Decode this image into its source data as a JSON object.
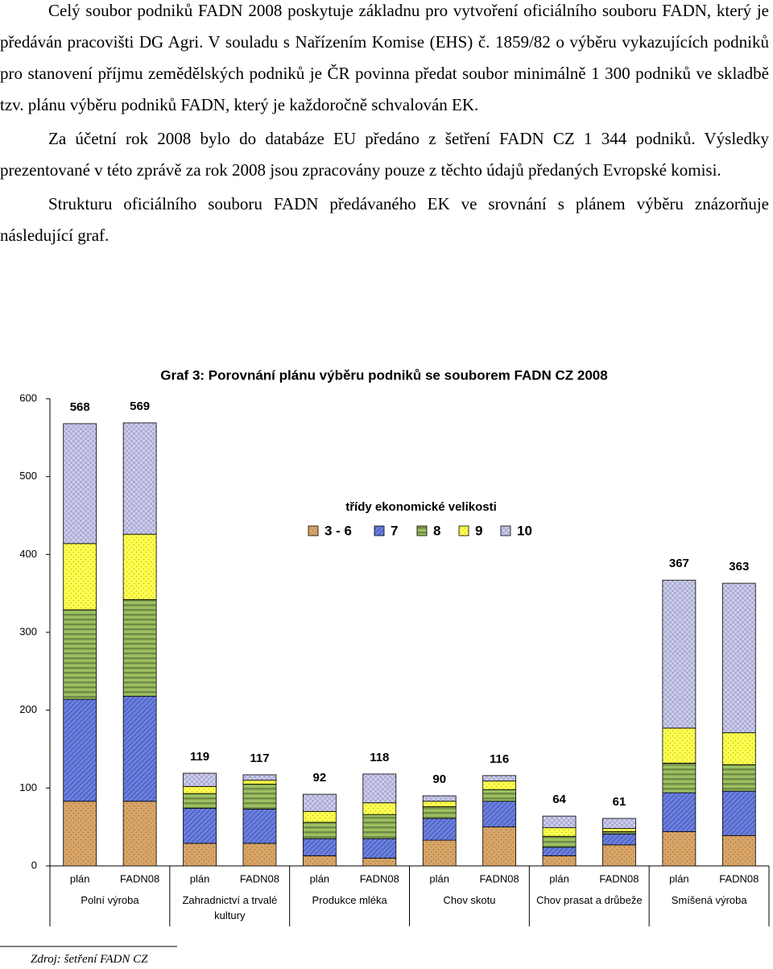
{
  "paragraphs": [
    "Celý soubor podniků FADN 2008 poskytuje základnu pro vytvoření oficiálního souboru FADN, který je předáván pracovišti DG Agri. V souladu s Nařízením Komise (EHS) č. 1859/82 o výběru vykazujících podniků pro stanovení příjmu zemědělských podniků je ČR povinna předat soubor minimálně 1 300 podniků ve skladbě tzv. plánu výběru podniků FADN, který je každoročně schvalován EK.",
    "Za účetní rok 2008 bylo do databáze EU předáno z šetření FADN CZ 1 344 podniků. Výsledky prezentované v této zprávě za rok 2008 jsou zpracovány pouze z těchto údajů předaných Evropské komisi.",
    "Strukturu oficiálního souboru FADN předávaného EK ve srovnání s plánem výběru znázorňuje následující graf."
  ],
  "chart_data": {
    "type": "stacked_bar",
    "title": "Graf 3: Porovnání plánu výběru podniků se souborem FADN CZ 2008",
    "legend_title": "třídy ekonomické velikosti",
    "categories": [
      "plán",
      "FADN08",
      "plán",
      "FADN08",
      "plán",
      "FADN08",
      "plán",
      "FADN08",
      "plán",
      "FADN08",
      "plán",
      "FADN08"
    ],
    "groups": [
      "Polní výroba",
      "Zahradnictví a trvalé kultury",
      "Produkce mléka",
      "Chov skotu",
      "Chov prasat a drůbeže",
      "Smíšená výroba"
    ],
    "series": [
      {
        "name": "3 - 6",
        "color": "#d9a566",
        "values": [
          83,
          83,
          29,
          29,
          13,
          10,
          33,
          50,
          13,
          27,
          44,
          39
        ]
      },
      {
        "name": "7",
        "color": "#6a80e6",
        "values": [
          131,
          135,
          45,
          44,
          22,
          25,
          28,
          33,
          11,
          14,
          50,
          57
        ]
      },
      {
        "name": "8",
        "color": "#9cc061",
        "values": [
          115,
          124,
          19,
          32,
          21,
          31,
          15,
          15,
          14,
          3,
          38,
          34
        ]
      },
      {
        "name": "9",
        "color": "#ffff4d",
        "values": [
          85,
          84,
          9,
          5,
          14,
          15,
          7,
          11,
          11,
          4,
          45,
          41
        ]
      },
      {
        "name": "10",
        "color": "#ccccf2",
        "values": [
          154,
          143,
          17,
          7,
          22,
          37,
          7,
          7,
          15,
          13,
          190,
          192
        ]
      }
    ],
    "totals": [
      568,
      569,
      119,
      117,
      92,
      118,
      90,
      116,
      64,
      61,
      367,
      363
    ],
    "ylim": [
      0,
      600
    ],
    "yticks": [
      0,
      100,
      200,
      300,
      400,
      500,
      600
    ]
  },
  "source": "Zdroj: šetření FADN CZ"
}
